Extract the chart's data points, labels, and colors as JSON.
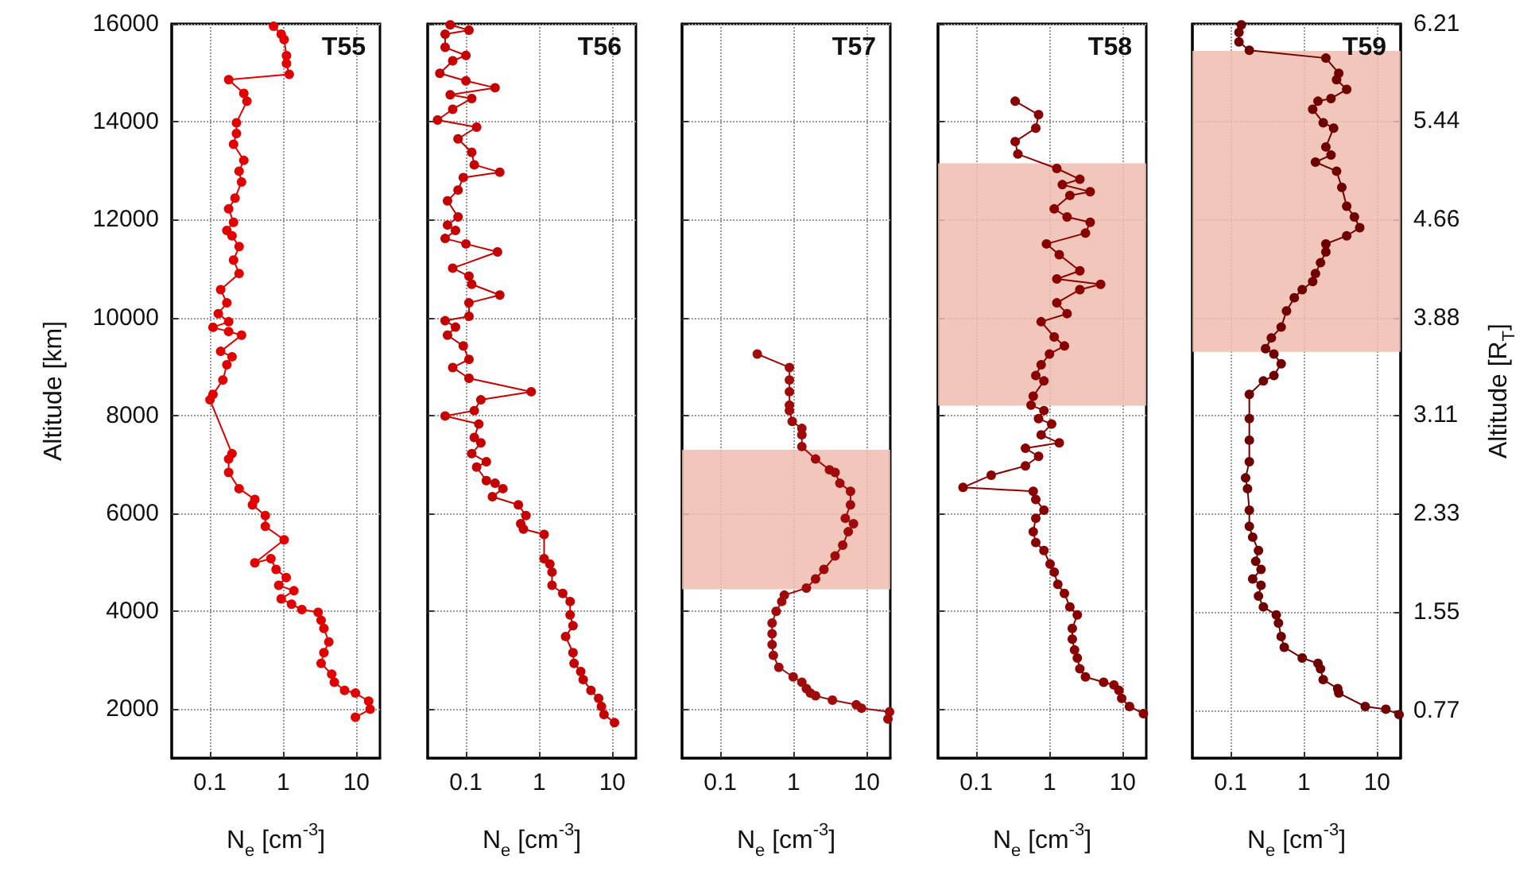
{
  "chart_data": [
    {
      "type": "line",
      "title": "T55",
      "xlabel": "N$_{e}$ [cm$^{-3}$]",
      "ylabel": "Altitude [km]",
      "color": "#e00000",
      "marker": "circle",
      "log": "x",
      "grid": true,
      "xlim": [
        0.03,
        21
      ],
      "xticks": [
        0.1,
        1,
        10
      ],
      "ylim": [
        1000,
        16000
      ],
      "yticks": [
        2000,
        4000,
        6000,
        8000,
        10000,
        12000,
        14000,
        16000
      ],
      "x": [
        9.7,
        15.4,
        14.7,
        9.7,
        6.9,
        5.0,
        4.6,
        3.3,
        3.6,
        4.2,
        3.6,
        3.3,
        3.0,
        1.8,
        1.3,
        0.94,
        1.4,
        0.87,
        1.1,
        0.8,
        0.68,
        0.41,
        1.03,
        0.57,
        0.57,
        0.38,
        0.41,
        0.25,
        0.18,
        0.18,
        0.2,
        0.1,
        0.11,
        0.15,
        0.17,
        0.2,
        0.14,
        0.27,
        0.18,
        0.11,
        0.18,
        0.13,
        0.17,
        0.14,
        0.25,
        0.21,
        0.25,
        0.2,
        0.17,
        0.21,
        0.18,
        0.22,
        0.27,
        0.25,
        0.29,
        0.21,
        0.23,
        0.23,
        0.32,
        0.29,
        0.18,
        1.21,
        1.11,
        1.11,
        1.03,
        0.94,
        0.74
      ],
      "values": [
        1835,
        2000,
        2165,
        2330,
        2385,
        2550,
        2715,
        2935,
        3155,
        3375,
        3650,
        3815,
        3980,
        4035,
        4145,
        4255,
        4420,
        4530,
        4690,
        4855,
        5075,
        4990,
        5460,
        5735,
        5955,
        6175,
        6285,
        6505,
        6835,
        7110,
        7220,
        8320,
        8430,
        8725,
        9035,
        9200,
        9310,
        9640,
        9715,
        9800,
        9915,
        10080,
        10300,
        10570,
        10900,
        11175,
        11450,
        11670,
        11780,
        11945,
        12220,
        12440,
        12770,
        12990,
        13210,
        13540,
        13760,
        13980,
        14420,
        14580,
        14860,
        14970,
        15190,
        15350,
        15680,
        15790,
        15950
      ]
    },
    {
      "type": "line",
      "title": "T56",
      "xlabel": "N$_{e}$ [cm$^{-3}$]",
      "color": "#c40000",
      "marker": "circle",
      "log": "x",
      "grid": true,
      "tick_labels": "x",
      "xlim": [
        0.03,
        21
      ],
      "xticks": [
        0.1,
        1,
        10
      ],
      "ylim": [
        1000,
        16000
      ],
      "yticks": [
        2000,
        4000,
        6000,
        8000,
        10000,
        12000,
        14000,
        16000
      ],
      "x": [
        10.7,
        7.7,
        7.1,
        6.5,
        5.1,
        4.0,
        3.7,
        3.0,
        2.9,
        2.3,
        2.9,
        2.65,
        2.65,
        2.1,
        1.5,
        1.5,
        1.4,
        1.17,
        1.17,
        0.61,
        0.56,
        0.66,
        0.52,
        0.23,
        0.32,
        0.25,
        0.19,
        0.14,
        0.19,
        0.12,
        0.16,
        0.13,
        0.15,
        0.052,
        0.13,
        0.16,
        0.78,
        0.11,
        0.066,
        0.11,
        0.092,
        0.056,
        0.072,
        0.052,
        0.11,
        0.11,
        0.29,
        0.12,
        0.11,
        0.066,
        0.27,
        0.1,
        0.052,
        0.072,
        0.056,
        0.078,
        0.056,
        0.078,
        0.092,
        0.29,
        0.13,
        0.12,
        0.078,
        0.14,
        0.041,
        0.066,
        0.12,
        0.061,
        0.25,
        0.1,
        0.044,
        0.066,
        0.1,
        0.052,
        0.052,
        0.11,
        0.061
      ],
      "values": [
        1725,
        1890,
        2055,
        2220,
        2385,
        2605,
        2770,
        2935,
        3155,
        3485,
        3705,
        3925,
        4200,
        4365,
        4530,
        4800,
        4965,
        5075,
        5570,
        5680,
        5790,
        5955,
        6175,
        6340,
        6505,
        6615,
        6670,
        6945,
        7055,
        7220,
        7440,
        7550,
        7825,
        7990,
        8100,
        8320,
        8485,
        8760,
        8980,
        9145,
        9420,
        9640,
        9805,
        9935,
        10025,
        10300,
        10460,
        10680,
        10845,
        11010,
        11340,
        11505,
        11615,
        11780,
        11890,
        12055,
        12385,
        12605,
        12860,
        12970,
        13120,
        13375,
        13650,
        13890,
        14035,
        14255,
        14475,
        14550,
        14695,
        14835,
        14990,
        15245,
        15355,
        15520,
        15790,
        15870,
        15980
      ]
    },
    {
      "type": "line",
      "title": "T57",
      "xlabel": "N$_{e}$ [cm$^{-3}$]",
      "color": "#a00a0a",
      "marker": "circle",
      "log": "x",
      "grid": true,
      "tick_labels": "x",
      "xlim": [
        0.03,
        21
      ],
      "xticks": [
        0.1,
        1,
        10
      ],
      "ylim": [
        1000,
        16000
      ],
      "yticks": [
        2000,
        4000,
        6000,
        8000,
        10000,
        12000,
        14000,
        16000
      ],
      "bands": [
        {
          "axis": "y",
          "from": 4450,
          "to": 7300,
          "color": "#eebcaf"
        }
      ],
      "x": [
        19.5,
        20.5,
        8.5,
        7.2,
        3.4,
        2.0,
        1.7,
        1.5,
        1.3,
        0.99,
        0.63,
        0.53,
        0.51,
        0.51,
        0.51,
        0.58,
        0.69,
        0.75,
        1.5,
        2.0,
        2.6,
        3.7,
        4.7,
        5.6,
        6.6,
        5.1,
        6.0,
        6.0,
        4.3,
        3.7,
        3.1,
        2.0,
        1.3,
        1.3,
        1.3,
        0.96,
        0.88,
        0.88,
        0.88,
        0.88,
        0.88,
        0.32
      ],
      "values": [
        1800,
        1945,
        2020,
        2090,
        2185,
        2275,
        2330,
        2420,
        2550,
        2660,
        2855,
        3100,
        3320,
        3540,
        3760,
        4000,
        4200,
        4330,
        4475,
        4660,
        4855,
        5130,
        5350,
        5625,
        5790,
        5900,
        6175,
        6450,
        6615,
        6835,
        6890,
        7110,
        7365,
        7605,
        7735,
        7880,
        8100,
        8210,
        8485,
        8725,
        8980,
        9255
      ]
    },
    {
      "type": "line",
      "title": "T58",
      "xlabel": "N$_{e}$ [cm$^{-3}$]",
      "color": "#8a0000",
      "marker": "circle",
      "log": "x",
      "grid": true,
      "tick_labels": "x",
      "xlim": [
        0.03,
        21
      ],
      "xticks": [
        0.1,
        1,
        10
      ],
      "ylim": [
        1000,
        16000
      ],
      "yticks": [
        2000,
        4000,
        6000,
        8000,
        10000,
        12000,
        14000,
        16000
      ],
      "bands": [
        {
          "axis": "y",
          "from": 8200,
          "to": 13150,
          "color": "#eebcaf"
        }
      ],
      "x": [
        19.2,
        12.4,
        9.7,
        8.9,
        7.6,
        5.5,
        3.1,
        2.6,
        2.4,
        2.2,
        2.05,
        2.05,
        2.4,
        1.9,
        1.6,
        1.3,
        1.16,
        1.02,
        0.84,
        0.65,
        0.6,
        0.65,
        0.84,
        0.65,
        0.6,
        0.066,
        0.16,
        0.47,
        0.71,
        0.47,
        1.36,
        0.77,
        1.07,
        0.71,
        0.84,
        0.56,
        0.6,
        0.84,
        0.65,
        0.77,
        1.0,
        1.6,
        1.16,
        0.77,
        1.74,
        1.26,
        2.6,
        5.0,
        1.26,
        2.6,
        1.36,
        0.91,
        3.1,
        3.6,
        1.74,
        1.16,
        1.9,
        3.6,
        1.5,
        2.6,
        1.26,
        0.37,
        0.34,
        0.65,
        0.71,
        0.34
      ],
      "values": [
        1910,
        2055,
        2220,
        2385,
        2495,
        2550,
        2660,
        2825,
        3045,
        3210,
        3430,
        3650,
        3925,
        4090,
        4365,
        4550,
        4800,
        4965,
        5240,
        5405,
        5625,
        5900,
        6065,
        6285,
        6450,
        6530,
        6780,
        6970,
        7165,
        7330,
        7440,
        7605,
        7825,
        7935,
        8100,
        8210,
        8395,
        8705,
        8815,
        9035,
        9255,
        9420,
        9605,
        9915,
        10080,
        10300,
        10570,
        10680,
        10790,
        10955,
        11285,
        11505,
        11725,
        11945,
        12055,
        12220,
        12495,
        12570,
        12715,
        12825,
        13045,
        13340,
        13595,
        13870,
        14145,
        14420
      ]
    },
    {
      "type": "line",
      "title": "T59",
      "xlabel": "N$_{e}$ [cm$^{-3}$]",
      "y2label": "Altitude [R$_{T}$]",
      "color": "#700000",
      "marker": "circle",
      "log": "x",
      "grid": true,
      "tick_labels": "xy2",
      "xlim": [
        0.03,
        21
      ],
      "xticks": [
        0.1,
        1,
        10
      ],
      "ylim": [
        1000,
        16000
      ],
      "y2lim": [
        0.39,
        6.21
      ],
      "y2ticks": [
        0.77,
        1.55,
        2.33,
        3.11,
        3.88,
        4.66,
        5.44,
        6.21
      ],
      "bands": [
        {
          "axis": "y",
          "from": 9300,
          "to": 15450,
          "color": "#eebcaf"
        }
      ],
      "x": [
        20,
        13.2,
        6.9,
        3.0,
        2.9,
        1.84,
        1.69,
        1.56,
        0.95,
        0.54,
        0.49,
        0.45,
        0.42,
        0.28,
        0.24,
        0.26,
        0.2,
        0.26,
        0.22,
        0.24,
        0.2,
        0.18,
        0.18,
        0.17,
        0.16,
        0.18,
        0.18,
        0.18,
        0.18,
        0.28,
        0.39,
        0.49,
        0.39,
        0.3,
        0.36,
        0.49,
        0.58,
        0.74,
        0.95,
        1.32,
        1.44,
        1.69,
        2.0,
        2.0,
        3.85,
        5.8,
        4.9,
        3.85,
        3.3,
        2.8,
        1.44,
        2.35,
        2.0,
        2.55,
        1.84,
        1.32,
        1.56,
        2.35,
        3.85,
        2.8,
        3.0,
        2.0,
        0.18,
        0.13,
        0.13,
        0.14
      ],
      "values": [
        1890,
        2000,
        2055,
        2330,
        2420,
        2605,
        2825,
        2935,
        3045,
        3265,
        3485,
        3760,
        3925,
        4090,
        4310,
        4530,
        4660,
        4855,
        5020,
        5240,
        5515,
        5735,
        6065,
        6505,
        6725,
        7055,
        7495,
        7935,
        8430,
        8705,
        8815,
        9055,
        9255,
        9365,
        9585,
        9805,
        10135,
        10405,
        10570,
        10735,
        10900,
        11120,
        11340,
        11505,
        11670,
        11835,
        12055,
        12275,
        12660,
        12990,
        13175,
        13320,
        13485,
        13870,
        13980,
        14255,
        14420,
        14475,
        14660,
        14860,
        14990,
        15300,
        15460,
        15630,
        15825,
        15980
      ]
    }
  ]
}
